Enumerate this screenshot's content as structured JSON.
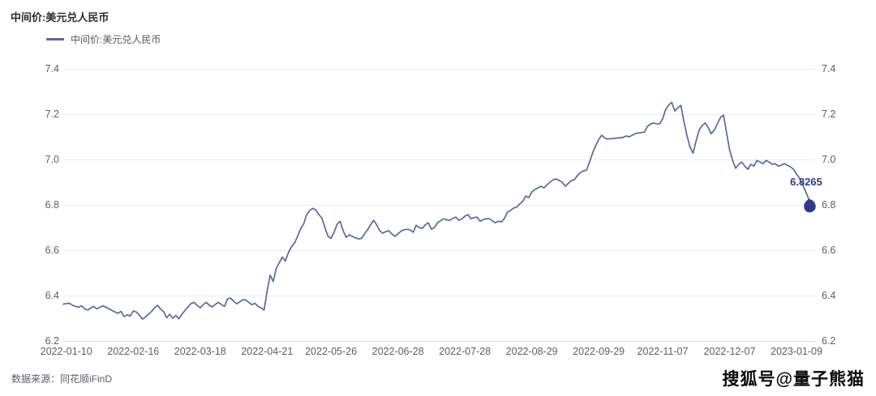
{
  "header": {
    "title": "中间价:美元兑人民币"
  },
  "legend": {
    "items": [
      {
        "label": "中间价:美元兑人民币",
        "color": "#5a699c"
      }
    ]
  },
  "footer": {
    "source": "数据来源：同花顺iFinD",
    "watermark": "搜狐号@量子熊猫"
  },
  "colors": {
    "line": "#5a699c",
    "marker": "#2c3a8f",
    "grid": "#e9e9ef",
    "axis_text": "#5d5d66"
  },
  "chart_data": {
    "type": "line",
    "title": "中间价:美元兑人民币",
    "xlabel": "",
    "ylabel": "",
    "ylim": [
      6.2,
      7.4
    ],
    "y_ticks": [
      6.2,
      6.4,
      6.6,
      6.8,
      7.0,
      7.2,
      7.4
    ],
    "grid": "horizontal",
    "legend_position": "top-left",
    "x_tick_labels": [
      "2022-01-10",
      "2022-02-16",
      "2022-03-18",
      "2022-04-21",
      "2022-05-26",
      "2022-06-28",
      "2022-07-28",
      "2022-08-29",
      "2022-09-29",
      "2022-11-07",
      "2022-12-07",
      "2023-01-09"
    ],
    "x_tick_indices": [
      1,
      23,
      45,
      67,
      88,
      110,
      132,
      154,
      176,
      197,
      219,
      241
    ],
    "last_value": 6.8265,
    "last_value_label": "6.8265",
    "series": [
      {
        "name": "中间价:美元兑人民币",
        "color": "#5a699c",
        "values": [
          6.362,
          6.365,
          6.366,
          6.358,
          6.352,
          6.349,
          6.355,
          6.342,
          6.336,
          6.345,
          6.352,
          6.341,
          6.348,
          6.355,
          6.349,
          6.342,
          6.335,
          6.328,
          6.322,
          6.33,
          6.307,
          6.315,
          6.31,
          6.332,
          6.328,
          6.314,
          6.296,
          6.305,
          6.318,
          6.33,
          6.346,
          6.357,
          6.34,
          6.329,
          6.302,
          6.318,
          6.3,
          6.312,
          6.298,
          6.318,
          6.334,
          6.35,
          6.365,
          6.37,
          6.357,
          6.346,
          6.36,
          6.37,
          6.357,
          6.35,
          6.362,
          6.37,
          6.36,
          6.352,
          6.386,
          6.389,
          6.375,
          6.364,
          6.372,
          6.382,
          6.38,
          6.37,
          6.36,
          6.366,
          6.352,
          6.346,
          6.336,
          6.42,
          6.49,
          6.462,
          6.52,
          6.545,
          6.57,
          6.552,
          6.59,
          6.615,
          6.632,
          6.66,
          6.695,
          6.715,
          6.757,
          6.775,
          6.785,
          6.778,
          6.757,
          6.742,
          6.7,
          6.662,
          6.652,
          6.679,
          6.714,
          6.728,
          6.686,
          6.657,
          6.668,
          6.661,
          6.655,
          6.65,
          6.652,
          6.672,
          6.69,
          6.712,
          6.732,
          6.712,
          6.686,
          6.675,
          6.682,
          6.686,
          6.672,
          6.661,
          6.672,
          6.684,
          6.69,
          6.692,
          6.69,
          6.679,
          6.71,
          6.7,
          6.696,
          6.712,
          6.721,
          6.693,
          6.7,
          6.721,
          6.73,
          6.739,
          6.734,
          6.732,
          6.74,
          6.746,
          6.732,
          6.738,
          6.75,
          6.757,
          6.739,
          6.744,
          6.746,
          6.728,
          6.735,
          6.739,
          6.739,
          6.73,
          6.721,
          6.728,
          6.725,
          6.74,
          6.768,
          6.775,
          6.786,
          6.79,
          6.804,
          6.815,
          6.839,
          6.832,
          6.857,
          6.868,
          6.875,
          6.882,
          6.875,
          6.889,
          6.9,
          6.911,
          6.914,
          6.908,
          6.9,
          6.882,
          6.895,
          6.907,
          6.911,
          6.929,
          6.943,
          6.95,
          6.954,
          6.989,
          7.03,
          7.061,
          7.089,
          7.107,
          7.095,
          7.09,
          7.092,
          7.093,
          7.095,
          7.096,
          7.098,
          7.104,
          7.1,
          7.107,
          7.114,
          7.117,
          7.119,
          7.121,
          7.146,
          7.156,
          7.161,
          7.158,
          7.157,
          7.18,
          7.221,
          7.24,
          7.252,
          7.214,
          7.229,
          7.239,
          7.168,
          7.105,
          7.055,
          7.028,
          7.082,
          7.13,
          7.15,
          7.161,
          7.14,
          7.114,
          7.13,
          7.158,
          7.185,
          7.196,
          7.12,
          7.043,
          6.996,
          6.961,
          6.979,
          6.989,
          6.971,
          6.957,
          6.979,
          6.971,
          6.996,
          6.989,
          6.982,
          6.996,
          6.989,
          6.979,
          6.982,
          6.971,
          6.975,
          6.982,
          6.975,
          6.968,
          6.957,
          6.936,
          6.918,
          6.889,
          6.86,
          6.8265
        ]
      }
    ]
  }
}
